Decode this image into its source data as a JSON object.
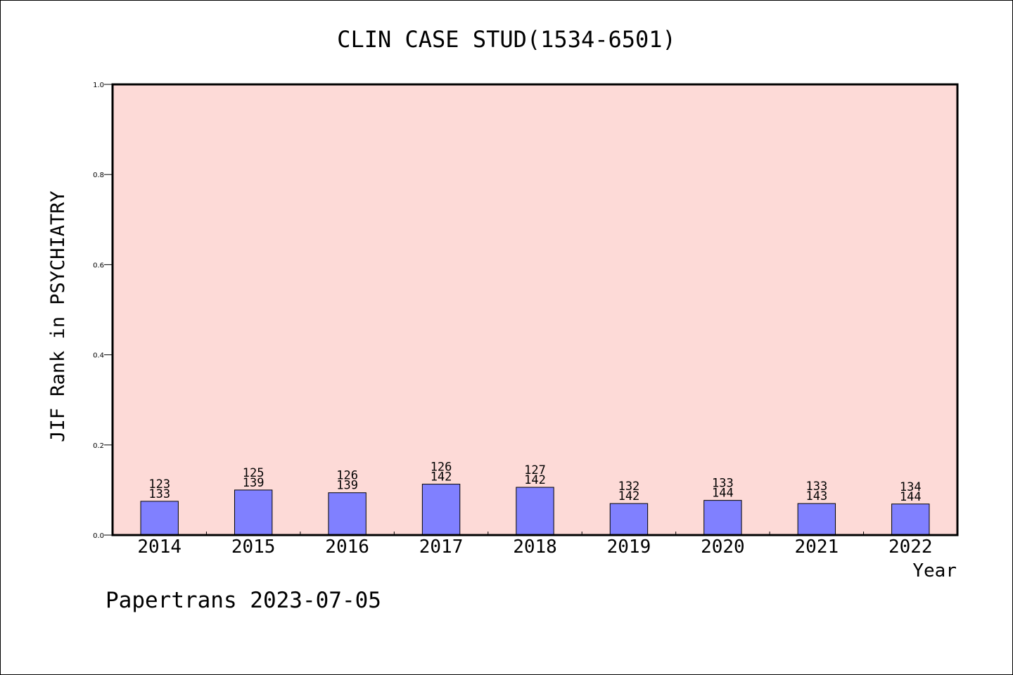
{
  "chart_data": {
    "type": "bar",
    "title": "CLIN CASE STUD(1534-6501)",
    "xlabel": "Year",
    "ylabel": "JIF Rank in PSYCHIATRY",
    "ylim": [
      0,
      1.0
    ],
    "yticks": [
      "0.0",
      "0.2",
      "0.4",
      "0.6",
      "0.8",
      "1.0"
    ],
    "ytick_values": [
      0,
      0.2,
      0.4,
      0.6,
      0.8,
      1.0
    ],
    "categories": [
      "2014",
      "2015",
      "2016",
      "2017",
      "2018",
      "2019",
      "2020",
      "2021",
      "2022"
    ],
    "values": [
      0.075,
      0.1,
      0.094,
      0.113,
      0.106,
      0.07,
      0.077,
      0.07,
      0.069
    ],
    "rank_labels": [
      "123",
      "125",
      "126",
      "126",
      "127",
      "132",
      "133",
      "133",
      "134"
    ],
    "total_labels": [
      "133",
      "139",
      "139",
      "142",
      "142",
      "142",
      "144",
      "143",
      "144"
    ],
    "grid": false,
    "legend": "none",
    "colors": {
      "plot_bg": "#fddad7",
      "bar": "#8080ff",
      "axis": "#000000"
    }
  },
  "footer": {
    "text": "Papertrans 2023-07-05"
  }
}
